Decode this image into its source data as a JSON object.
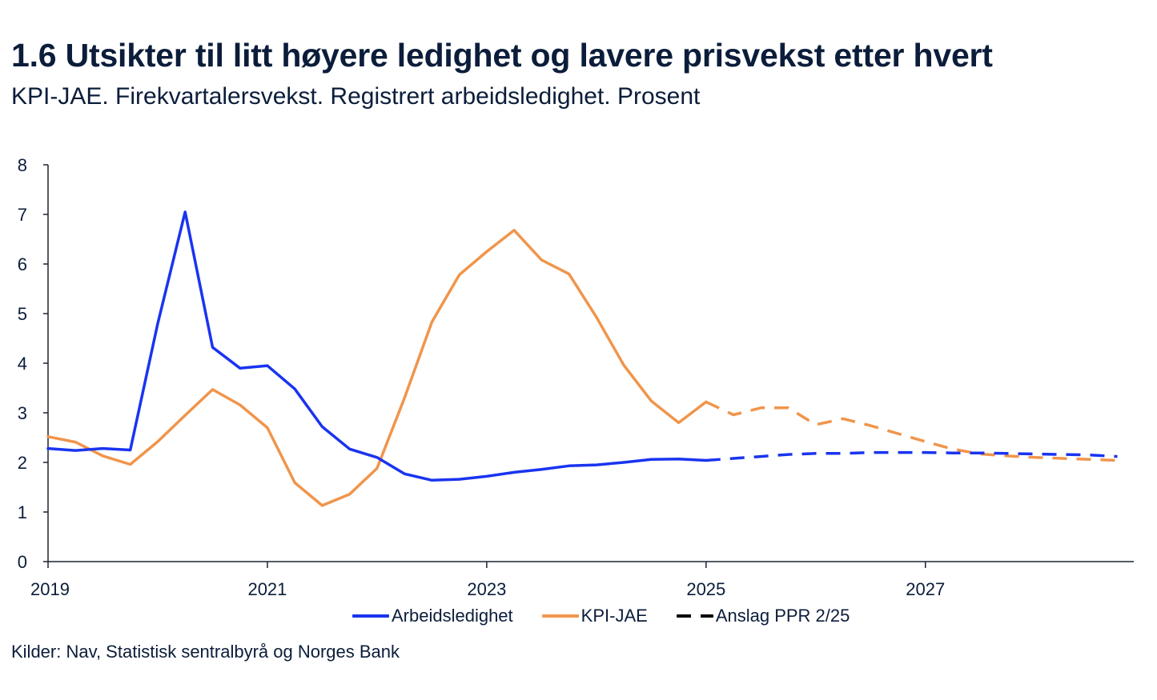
{
  "title": "1.6 Utsikter til litt høyere ledighet og lavere prisvekst etter hvert",
  "subtitle": "KPI-JAE. Firekvartalersvekst. Registrert arbeidsledighet. Prosent",
  "source": "Kilder: Nav, Statistisk sentralbyrå og Norges Bank",
  "colors": {
    "unemployment": "#1a34f0",
    "cpi": "#f0954b",
    "forecast_legend": "#000000",
    "axis": "#1b2433",
    "text": "#0b1d3a"
  },
  "legend": {
    "unemployment": "Arbeidsledighet",
    "cpi": "KPI-JAE",
    "forecast": "Anslag PPR 2/25"
  },
  "chart_data": {
    "type": "line",
    "title": "1.6 Utsikter til litt høyere ledighet og lavere prisvekst etter hvert",
    "subtitle": "KPI-JAE. Firekvartalersvekst. Registrert arbeidsledighet. Prosent",
    "xlabel": "",
    "ylabel": "",
    "xlim": [
      2019.0,
      2028.9
    ],
    "ylim": [
      0,
      8
    ],
    "yticks": [
      0,
      1,
      2,
      3,
      4,
      5,
      6,
      7,
      8
    ],
    "yticklabels": [
      "0",
      "1",
      "2",
      "3",
      "4",
      "5",
      "6",
      "7",
      "8"
    ],
    "xticks": [
      2019,
      2021,
      2023,
      2025,
      2027
    ],
    "xticklabels": [
      "2019",
      "2021",
      "2023",
      "2025",
      "2027"
    ],
    "grid": false,
    "legend_position": "bottom",
    "series": [
      {
        "name": "Arbeidsledighet",
        "color_key": "unemployment",
        "x": [
          2019.0,
          2019.25,
          2019.5,
          2019.75,
          2020.0,
          2020.25,
          2020.5,
          2020.75,
          2021.0,
          2021.25,
          2021.5,
          2021.75,
          2022.0,
          2022.25,
          2022.5,
          2022.75,
          2023.0,
          2023.25,
          2023.5,
          2023.75,
          2024.0,
          2024.25,
          2024.5,
          2024.75,
          2025.0
        ],
        "values": [
          2.28,
          2.24,
          2.28,
          2.25,
          4.8,
          7.05,
          4.32,
          3.9,
          3.95,
          3.48,
          2.72,
          2.27,
          2.1,
          1.77,
          1.64,
          1.66,
          1.72,
          1.8,
          1.86,
          1.93,
          1.95,
          2.0,
          2.06,
          2.07,
          2.04
        ],
        "forecast_x": [
          2025.0,
          2025.25,
          2025.5,
          2025.75,
          2026.0,
          2026.25,
          2026.5,
          2026.75,
          2027.0,
          2027.25,
          2027.5,
          2027.75,
          2028.0,
          2028.25,
          2028.5,
          2028.75
        ],
        "forecast_values": [
          2.04,
          2.08,
          2.12,
          2.16,
          2.18,
          2.18,
          2.2,
          2.2,
          2.2,
          2.19,
          2.19,
          2.18,
          2.17,
          2.16,
          2.15,
          2.12
        ]
      },
      {
        "name": "KPI-JAE",
        "color_key": "cpi",
        "x": [
          2019.0,
          2019.25,
          2019.5,
          2019.75,
          2020.0,
          2020.25,
          2020.5,
          2020.75,
          2021.0,
          2021.25,
          2021.5,
          2021.75,
          2022.0,
          2022.25,
          2022.5,
          2022.75,
          2023.0,
          2023.25,
          2023.5,
          2023.75,
          2024.0,
          2024.25,
          2024.5,
          2024.75,
          2025.0
        ],
        "values": [
          2.52,
          2.41,
          2.13,
          1.96,
          2.42,
          2.95,
          3.47,
          3.16,
          2.7,
          1.59,
          1.13,
          1.36,
          1.88,
          3.3,
          4.83,
          5.78,
          6.25,
          6.68,
          6.08,
          5.8,
          4.93,
          3.96,
          3.24,
          2.8,
          3.22
        ],
        "forecast_x": [
          2025.0,
          2025.25,
          2025.5,
          2025.75,
          2026.0,
          2026.25,
          2026.5,
          2026.75,
          2027.0,
          2027.25,
          2027.5,
          2027.75,
          2028.0,
          2028.25,
          2028.5,
          2028.75
        ],
        "forecast_values": [
          3.22,
          2.96,
          3.1,
          3.1,
          2.76,
          2.88,
          2.74,
          2.58,
          2.42,
          2.27,
          2.17,
          2.13,
          2.1,
          2.08,
          2.06,
          2.04
        ]
      }
    ],
    "forecast_label": "Anslag PPR 2/25"
  }
}
